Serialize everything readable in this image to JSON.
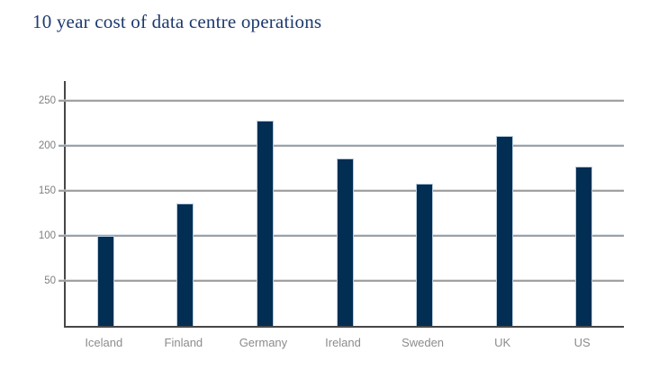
{
  "title": {
    "text": "10 year cost of data centre operations",
    "color": "#1d3a6e"
  },
  "chart_data": {
    "type": "bar",
    "title": "10 year cost of data centre operations",
    "categories": [
      "Iceland",
      "Finland",
      "Germany",
      "Ireland",
      "Sweden",
      "UK",
      "US"
    ],
    "values": [
      100,
      136,
      228,
      186,
      158,
      211,
      177
    ],
    "xlabel": "",
    "ylabel": "",
    "ylim": [
      0,
      272
    ],
    "yticks": [
      50,
      100,
      150,
      200,
      250
    ],
    "grid": true,
    "legend": "none",
    "bar_color": "#032e54",
    "bar_edge_color": "#b9cede",
    "axis_color": "#474747",
    "gridline_color": "#a1a1a1",
    "y_tick_label_color": "#7f7f7f",
    "x_label_color": "#8c8c8c"
  }
}
